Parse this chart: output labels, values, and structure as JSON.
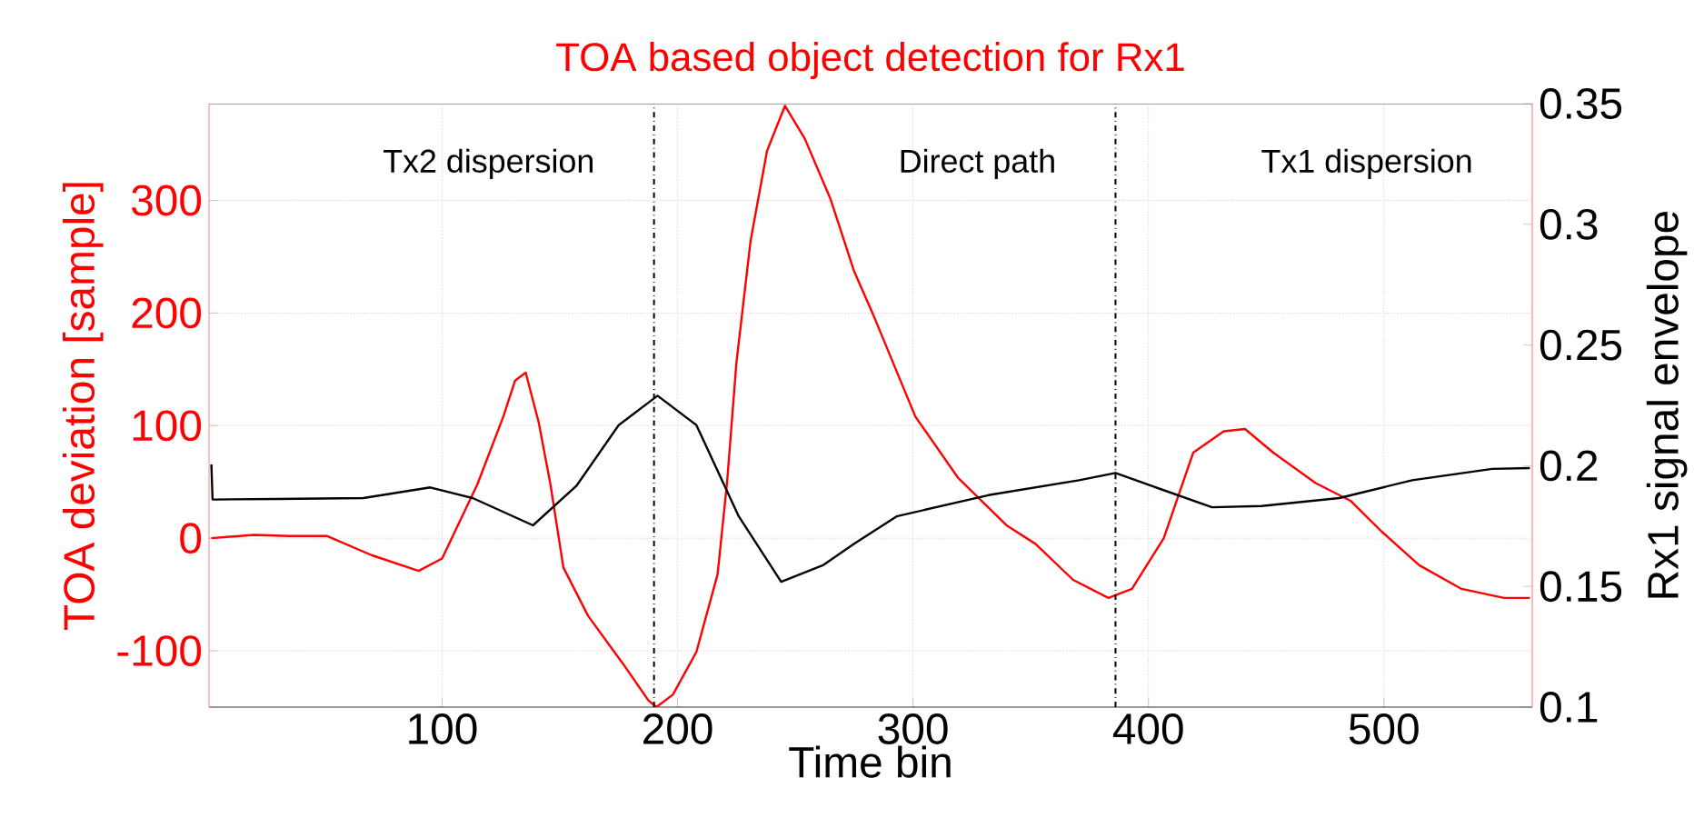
{
  "chart_data": {
    "type": "line",
    "title": "TOA based object detection for Rx1",
    "xlabel": "Time bin",
    "ylabel": "TOA deviation [sample]",
    "y2label": "Rx1 signal envelope",
    "annotations": [
      "Tx2 dispersion",
      "Direct path",
      "Tx1 dispersion"
    ],
    "xlim": [
      1,
      563
    ],
    "xticks": [
      100,
      200,
      300,
      400,
      500
    ],
    "ylim": [
      -150,
      386
    ],
    "yticks": [
      -100,
      0,
      100,
      200,
      300
    ],
    "y2lim": [
      0.1,
      0.35
    ],
    "y2ticks": [
      0.1,
      0.15,
      0.2,
      0.25,
      0.3,
      0.35
    ],
    "grid": true,
    "ref_lines": [
      {
        "axis": "x",
        "value": 190,
        "color": "#000000",
        "line_style": "dashdot"
      },
      {
        "axis": "x",
        "value": 386,
        "color": "#000000",
        "line_style": "dashdot"
      }
    ],
    "series": [
      {
        "color": "#ff0000",
        "x": [
          2,
          20,
          35,
          51,
          70,
          90,
          100,
          115,
          126,
          131,
          135.5,
          141,
          146,
          151.5,
          162,
          177,
          187.6,
          191,
          198,
          208,
          217,
          221,
          225,
          231,
          238,
          245.6,
          254,
          265,
          275,
          283,
          301,
          319,
          340,
          352,
          368,
          383,
          393,
          406.5,
          419,
          432,
          441,
          453,
          471,
          486,
          499,
          515,
          533,
          551,
          562
        ],
        "values": [
          0,
          3,
          2,
          2,
          -15,
          -29,
          -18,
          48,
          108,
          140,
          147,
          103,
          48,
          -26,
          -69,
          -112,
          -144,
          -150,
          -139,
          -101,
          -32,
          49,
          156,
          264,
          344,
          384,
          355,
          301,
          237,
          199,
          108,
          54,
          11,
          -5,
          -37,
          -53,
          -45,
          0,
          76,
          95,
          97,
          76,
          49,
          33,
          6,
          -24,
          -45,
          -53,
          -53
        ]
      },
      {
        "color": "#000000",
        "axis": "y2",
        "x": [
          2,
          2.5,
          30,
          66.5,
          95,
          113,
          138.6,
          157,
          175,
          191.5,
          208,
          226,
          244,
          262,
          275,
          293,
          332,
          370.5,
          386,
          401.4,
          427,
          448,
          481,
          512,
          546,
          562
        ],
        "values": [
          0.2005,
          0.186,
          0.1862,
          0.1866,
          0.191,
          0.1866,
          0.1753,
          0.1916,
          0.2168,
          0.229,
          0.2168,
          0.179,
          0.1519,
          0.1589,
          0.1677,
          0.179,
          0.1878,
          0.194,
          0.197,
          0.1916,
          0.1828,
          0.1833,
          0.1866,
          0.194,
          0.1987,
          0.199
        ]
      }
    ]
  }
}
